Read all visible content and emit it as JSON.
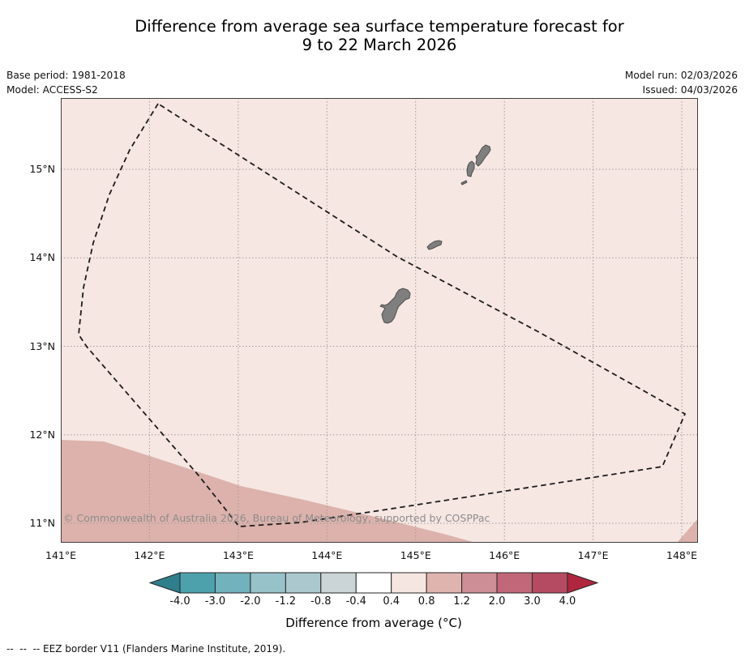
{
  "title": {
    "line1": "Difference from average sea surface temperature forecast for",
    "line2": "9 to 22 March 2026"
  },
  "meta": {
    "base_period": "Base period: 1981-2018",
    "model": "Model: ACCESS-S2",
    "model_run": "Model run: 02/03/2026",
    "issued": "Issued: 04/03/2026"
  },
  "map": {
    "copyright": "© Commonwealth of Australia 2026, Bureau of Meteorology, supported by COSPPac",
    "x_ticks": [
      "141°E",
      "142°E",
      "143°E",
      "144°E",
      "145°E",
      "146°E",
      "147°E",
      "148°E"
    ],
    "y_ticks": [
      "15°N",
      "14°N",
      "13°N",
      "12°N",
      "11°N"
    ],
    "colors": {
      "sea_light": "#F6E7E3",
      "sea_dark": "#DDB2AC",
      "island_fill": "#7F7F7F",
      "island_stroke": "#4D4D4D",
      "eez_border": "#1C1C1C",
      "grid": "#A39A98",
      "frame": "#3F3F3F"
    },
    "anomaly_regions": [
      {
        "value_range_c": "0.4 to 0.8",
        "area": "most of the map",
        "color": "#F6E7E3"
      },
      {
        "value_range_c": "0.8 to 1.2",
        "area": "southwest corner and far southeast corner",
        "color": "#DDB2AC"
      }
    ],
    "overlay": "dashed EEZ border polygon around the Mariana Islands"
  },
  "colorbar": {
    "ticks": [
      "-4.0",
      "-3.0",
      "-2.0",
      "-1.2",
      "-0.8",
      "-0.4",
      "0.4",
      "0.8",
      "1.2",
      "2.0",
      "3.0",
      "4.0"
    ],
    "segments": [
      "#4CA1AD",
      "#72B2BC",
      "#97C2CA",
      "#ABC8CF",
      "#CBD5D7",
      "#FFFFFF",
      "#F6E6E2",
      "#DFB4AF",
      "#CD8E95",
      "#C0687A",
      "#B44B62"
    ],
    "left_arrow": "#2E7F8B",
    "right_arrow": "#B0263F",
    "label": "Difference from average (°C)"
  },
  "footer": {
    "eez_legend": "--  --  -- EEZ border V11 (Flanders Marine Institute, 2019)."
  }
}
